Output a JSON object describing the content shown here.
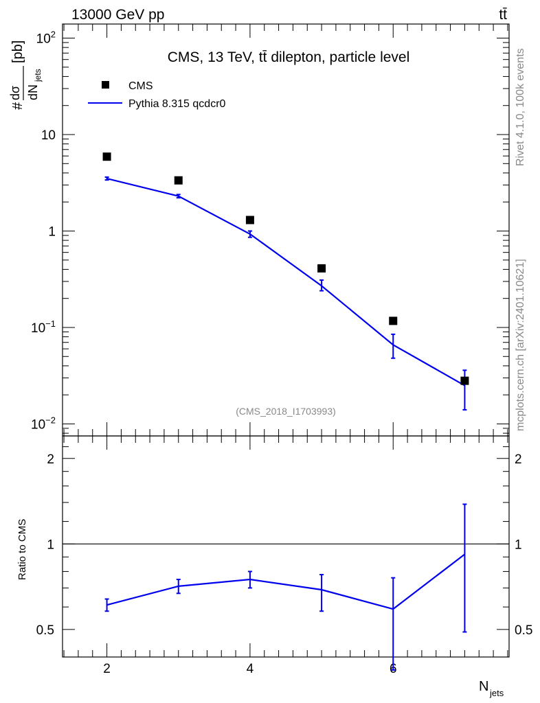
{
  "header": {
    "energy_label": "13000 GeV pp",
    "process_label": "tt̄"
  },
  "side_labels": {
    "rivet": "Rivet 4.1.0,  100k events",
    "mcplots": "mcplots.cern.ch [arXiv:2401.10621]"
  },
  "colors": {
    "mc": "#0000ee",
    "data": "#000000",
    "muted": "#888888"
  },
  "chart_data": [
    {
      "type": "scatter",
      "title": "CMS, 13 TeV, tt̄ dilepton, particle level",
      "watermark": "(CMS_2018_I1703993)",
      "ylabel": "# dσ/dN_jets [pb]",
      "yscale": "log",
      "ylim": [
        0.0075,
        140
      ],
      "xlim": [
        1.38,
        7.62
      ],
      "ytick_labels": [
        "10^-2",
        "10^-1",
        "1",
        "10",
        "10^2"
      ],
      "legend": {
        "position": "top-left",
        "entries": [
          "CMS",
          "Pythia 8.315 qcdcr0"
        ]
      },
      "series": [
        {
          "name": "CMS",
          "style": "markers",
          "x": [
            2,
            3,
            4,
            5,
            6,
            7
          ],
          "y": [
            5.9,
            3.35,
            1.3,
            0.41,
            0.117,
            0.028
          ]
        },
        {
          "name": "Pythia 8.315 qcdcr0",
          "style": "line",
          "x": [
            2,
            3,
            4,
            5,
            6,
            7
          ],
          "y": [
            3.5,
            2.3,
            0.93,
            0.27,
            0.066,
            0.025
          ],
          "err_low": [
            3.38,
            2.21,
            0.86,
            0.24,
            0.048,
            0.014
          ],
          "err_high": [
            3.62,
            2.39,
            1.0,
            0.31,
            0.085,
            0.036
          ]
        }
      ]
    },
    {
      "type": "line",
      "ylabel": "Ratio to CMS",
      "xlabel": "N_jets",
      "yscale": "log",
      "ylim": [
        0.4,
        2.4
      ],
      "xlim": [
        1.38,
        7.62
      ],
      "reference_line": 1,
      "ytick_labels": [
        "0.5",
        "1",
        "2"
      ],
      "xtick_labels": [
        "2",
        "4",
        "6"
      ],
      "series": [
        {
          "name": "Pythia 8.315 qcdcr0 / CMS",
          "x": [
            2,
            3,
            4,
            5,
            6,
            7
          ],
          "y": [
            0.61,
            0.71,
            0.75,
            0.69,
            0.59,
            0.92
          ],
          "err_low": [
            0.58,
            0.67,
            0.7,
            0.58,
            0.36,
            0.49
          ],
          "err_high": [
            0.64,
            0.75,
            0.8,
            0.78,
            0.76,
            1.38
          ]
        }
      ]
    }
  ]
}
